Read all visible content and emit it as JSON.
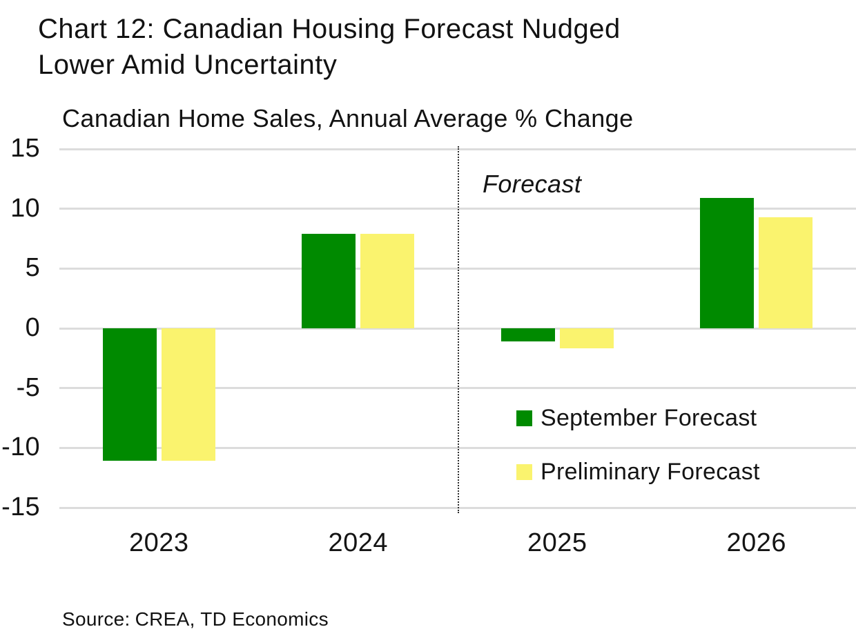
{
  "header": {
    "title_line1": "Chart 12: Canadian Housing Forecast Nudged",
    "title_line2": "Lower Amid Uncertainty",
    "subtitle": "Canadian Home Sales, Annual Average % Change"
  },
  "chart_data": {
    "type": "bar",
    "title": "Canadian Home Sales, Annual Average % Change",
    "categories": [
      "2023",
      "2024",
      "2025",
      "2026"
    ],
    "series": [
      {
        "name": "September Forecast",
        "color": "#008A00",
        "values": [
          -11.1,
          7.9,
          -1.1,
          10.9
        ]
      },
      {
        "name": "Preliminary Forecast",
        "color": "#FAF36E",
        "values": [
          -11.1,
          7.9,
          -1.7,
          9.3
        ]
      }
    ],
    "xlabel": "",
    "ylabel": "",
    "ylim": [
      -15,
      15
    ],
    "yticks": [
      15,
      10,
      5,
      0,
      -5,
      -10,
      -15
    ],
    "grid": "horizontal",
    "gridline_color": "#DCDCDC",
    "annotation": {
      "label": "Forecast",
      "style": "italic"
    },
    "forecast_divider": {
      "after_category": "2024",
      "line_style": "dotted"
    },
    "legend": {
      "position": "inside-bottom-right",
      "entries": [
        "September Forecast",
        "Preliminary Forecast"
      ]
    }
  },
  "footer": {
    "source_label": "Source:",
    "source_value": "CREA, TD Economics"
  }
}
